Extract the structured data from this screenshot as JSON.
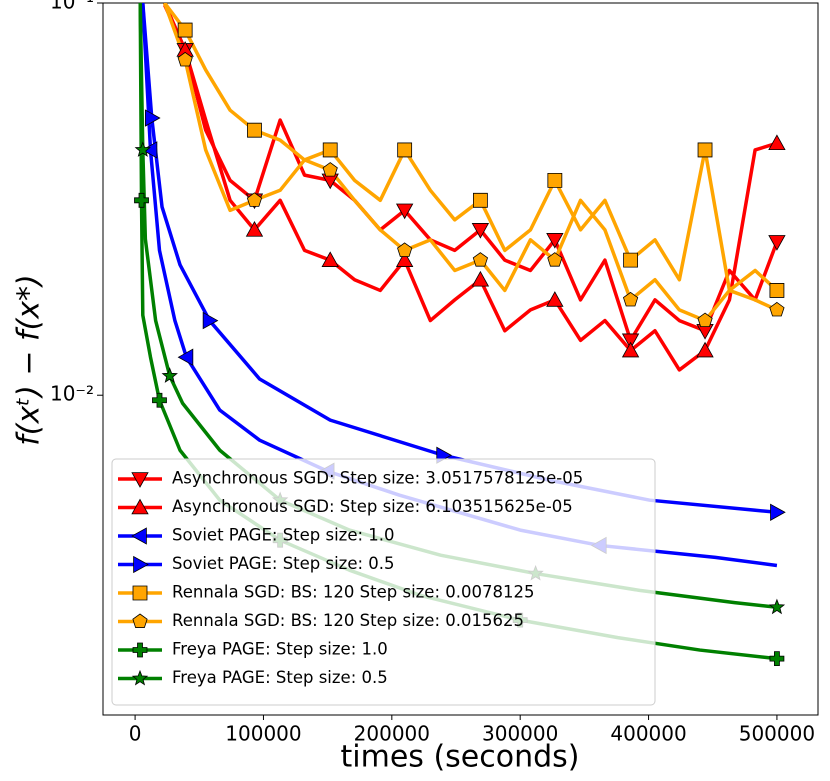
{
  "chart_data": {
    "type": "line",
    "xlabel": "times (seconds)",
    "ylabel": "f(xᵗ) − f(x*)",
    "xlim": [
      -25000,
      532000
    ],
    "xticks": [
      0,
      100000,
      200000,
      300000,
      400000,
      500000
    ],
    "ylim": [
      0.00153,
      0.1
    ],
    "yscale": "log",
    "yticks": [
      {
        "value": 0.1,
        "label": "10⁻¹"
      },
      {
        "value": 0.01,
        "label": "10⁻²"
      }
    ],
    "legend": "lower left",
    "series": [
      {
        "name": "Asynchronous SGD: Step size: 3.0517578125e-05",
        "color": "#ff0000",
        "marker": "v",
        "markevery": 3,
        "x": [
          23000,
          39000,
          55000,
          74000,
          93000,
          113000,
          132000,
          152000,
          171000,
          191000,
          210000,
          230000,
          249000,
          269000,
          288000,
          308000,
          327000,
          347000,
          366000,
          386000,
          405000,
          424000,
          444000,
          463000,
          483000,
          500000
        ],
        "values": [
          0.0988,
          0.0759,
          0.0474,
          0.0353,
          0.0314,
          0.0503,
          0.0364,
          0.0353,
          0.0314,
          0.0264,
          0.0296,
          0.0249,
          0.0234,
          0.0264,
          0.0221,
          0.0208,
          0.0249,
          0.0175,
          0.0221,
          0.0138,
          0.0175,
          0.0155,
          0.0146,
          0.0208,
          0.0175,
          0.0246
        ]
      },
      {
        "name": "Asynchronous SGD: Step size: 6.103515625e-05",
        "color": "#ff0000",
        "marker": "^",
        "markevery": 3,
        "x": [
          23000,
          39000,
          55000,
          74000,
          93000,
          113000,
          132000,
          152000,
          171000,
          191000,
          210000,
          230000,
          249000,
          269000,
          288000,
          308000,
          327000,
          347000,
          366000,
          386000,
          405000,
          424000,
          444000,
          463000,
          483000,
          500000
        ],
        "values": [
          0.1,
          0.0759,
          0.0503,
          0.0314,
          0.0264,
          0.0314,
          0.0234,
          0.0221,
          0.0197,
          0.0185,
          0.0221,
          0.0155,
          0.0175,
          0.0197,
          0.0146,
          0.0165,
          0.0175,
          0.0138,
          0.0155,
          0.013,
          0.0146,
          0.0116,
          0.013,
          0.0175,
          0.0422,
          0.0439
        ]
      },
      {
        "name": "Soviet PAGE: Step size: 1.0",
        "color": "#0000ff",
        "marker": "<",
        "markevery": 3,
        "x": [
          6000,
          12000,
          19000,
          31000,
          40000,
          66000,
          97000,
          150000,
          206000,
          300000,
          362000,
          452000,
          500000
        ],
        "values": [
          0.1,
          0.0422,
          0.0234,
          0.0155,
          0.0125,
          0.00916,
          0.00768,
          0.0064,
          0.00556,
          0.00453,
          0.00414,
          0.00386,
          0.00368
        ]
      },
      {
        "name": "Soviet PAGE: Step size: 0.5",
        "color": "#0000ff",
        "marker": ">",
        "markevery": 3,
        "x": [
          6000,
          13000,
          21000,
          35000,
          58000,
          97000,
          152000,
          240000,
          323000,
          401000,
          500000
        ],
        "values": [
          0.1,
          0.0509,
          0.0302,
          0.0215,
          0.0155,
          0.011,
          0.00864,
          0.00703,
          0.00607,
          0.0054,
          0.00503
        ]
      },
      {
        "name": "Rennala SGD: BS: 120 Step size: 0.0078125",
        "color": "#ffa500",
        "marker": "s",
        "markevery": 3,
        "x": [
          23000,
          39000,
          55000,
          74000,
          93000,
          113000,
          132000,
          152000,
          171000,
          191000,
          210000,
          230000,
          249000,
          269000,
          288000,
          308000,
          327000,
          347000,
          366000,
          386000,
          405000,
          424000,
          444000,
          463000,
          483000,
          500000
        ],
        "values": [
          0.1,
          0.0853,
          0.0675,
          0.0533,
          0.0474,
          0.0447,
          0.0398,
          0.0422,
          0.0353,
          0.0314,
          0.0422,
          0.0333,
          0.028,
          0.0314,
          0.0234,
          0.0264,
          0.0353,
          0.0264,
          0.0314,
          0.0221,
          0.0249,
          0.0197,
          0.0422,
          0.0185,
          0.0208,
          0.0185
        ]
      },
      {
        "name": "Rennala SGD: BS: 120 Step size: 0.015625",
        "color": "#ffa500",
        "marker": "p",
        "markevery": 3,
        "x": [
          23000,
          39000,
          55000,
          74000,
          93000,
          113000,
          132000,
          152000,
          171000,
          191000,
          210000,
          230000,
          249000,
          269000,
          288000,
          308000,
          327000,
          347000,
          366000,
          386000,
          405000,
          424000,
          444000,
          463000,
          483000,
          500000
        ],
        "values": [
          0.1,
          0.0716,
          0.0422,
          0.0296,
          0.0314,
          0.0333,
          0.0398,
          0.0375,
          0.0314,
          0.0264,
          0.0234,
          0.0249,
          0.0208,
          0.0221,
          0.0185,
          0.0249,
          0.0221,
          0.0314,
          0.0264,
          0.0175,
          0.0197,
          0.0165,
          0.0155,
          0.0185,
          0.0175,
          0.0165
        ]
      },
      {
        "name": "Freya PAGE: Step size: 1.0",
        "color": "#008000",
        "marker": "P",
        "markevery": 3,
        "x": [
          4000,
          5000,
          6000,
          12000,
          19000,
          35000,
          66000,
          113000,
          167000,
          222000,
          300000,
          376000,
          440000,
          500000
        ],
        "values": [
          0.1,
          0.0314,
          0.016,
          0.0125,
          0.00971,
          0.00724,
          0.0054,
          0.00427,
          0.00358,
          0.00309,
          0.00267,
          0.00241,
          0.00224,
          0.00213
        ]
      },
      {
        "name": "Freya PAGE: Step size: 0.5",
        "color": "#008000",
        "marker": "*",
        "markevery": 3,
        "x": [
          4000,
          6000,
          8000,
          16000,
          27000,
          37000,
          66000,
          113000,
          167000,
          238000,
          312000,
          393000,
          467000,
          500000
        ],
        "values": [
          0.1,
          0.0422,
          0.025,
          0.0155,
          0.0112,
          0.00954,
          0.00724,
          0.0054,
          0.00453,
          0.00391,
          0.00351,
          0.00318,
          0.00296,
          0.00288
        ]
      }
    ]
  }
}
